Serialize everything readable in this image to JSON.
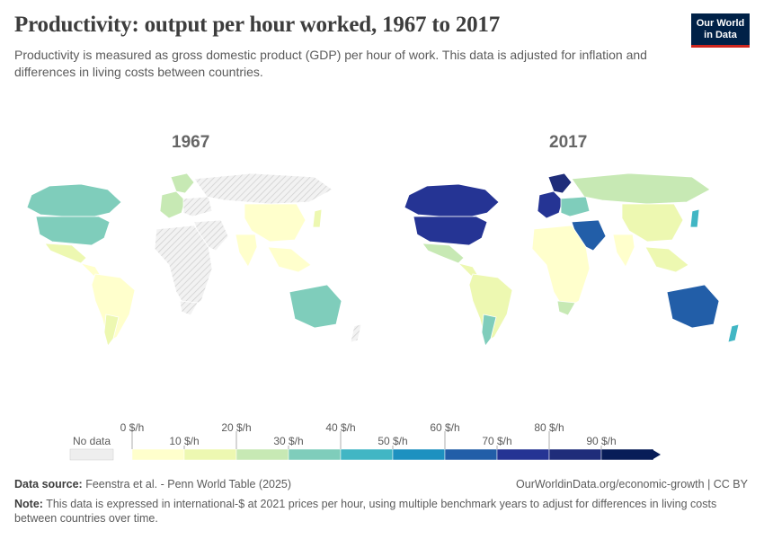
{
  "header": {
    "title": "Productivity: output per hour worked, 1967 to 2017",
    "subtitle": "Productivity is measured as gross domestic product (GDP) per hour of work. This data is adjusted for inflation and differences in living costs between countries."
  },
  "logo": {
    "line1": "Our World",
    "line2": "in Data"
  },
  "maps": [
    {
      "year_label": "1967"
    },
    {
      "year_label": "2017"
    }
  ],
  "legend": {
    "no_data_label": "No data",
    "upper_ticks": [
      "0 $/h",
      "20 $/h",
      "40 $/h",
      "60 $/h",
      "80 $/h"
    ],
    "lower_ticks": [
      "10 $/h",
      "30 $/h",
      "50 $/h",
      "70 $/h",
      "90 $/h"
    ],
    "bins": [
      0,
      10,
      20,
      30,
      40,
      50,
      60,
      70,
      80,
      90,
      100
    ],
    "colors": [
      "#ffffcc",
      "#edf8b1",
      "#c7e9b4",
      "#7fcdbb",
      "#41b6c4",
      "#1d91c0",
      "#225ea8",
      "#253494",
      "#1f2d7a",
      "#081d58"
    ],
    "no_data_color": "#e6e6e6"
  },
  "map_data": {
    "1967": {
      "north-america": 35,
      "usa": 37,
      "mexico": 12,
      "central-america": 6,
      "south-america": 8,
      "argentina": 14,
      "western-europe": 22,
      "scandinavia": 20,
      "eastern-europe": null,
      "russia": null,
      "middle-east": null,
      "africa": null,
      "south-africa": null,
      "india": 3,
      "china": 1,
      "southeast-asia": 3,
      "japan": 12,
      "australia": 30,
      "new-zealand": null
    },
    "2017": {
      "north-america": 70,
      "usa": 78,
      "mexico": 28,
      "central-america": 14,
      "south-america": 18,
      "argentina": 33,
      "western-europe": 78,
      "scandinavia": 82,
      "eastern-europe": 38,
      "russia": 25,
      "middle-east": 60,
      "africa": 8,
      "south-africa": 20,
      "india": 9,
      "china": 14,
      "southeast-asia": 12,
      "japan": 48,
      "australia": 65,
      "new-zealand": 48
    }
  },
  "footer": {
    "source_label": "Data source:",
    "source_text": "Feenstra et al. - Penn World Table (2025)",
    "credit": "OurWorldinData.org/economic-growth | CC BY",
    "note_label": "Note:",
    "note_text": "This data is expressed in international-$ at 2021 prices per hour, using multiple benchmark years to adjust for differences in living costs between countries over time."
  }
}
